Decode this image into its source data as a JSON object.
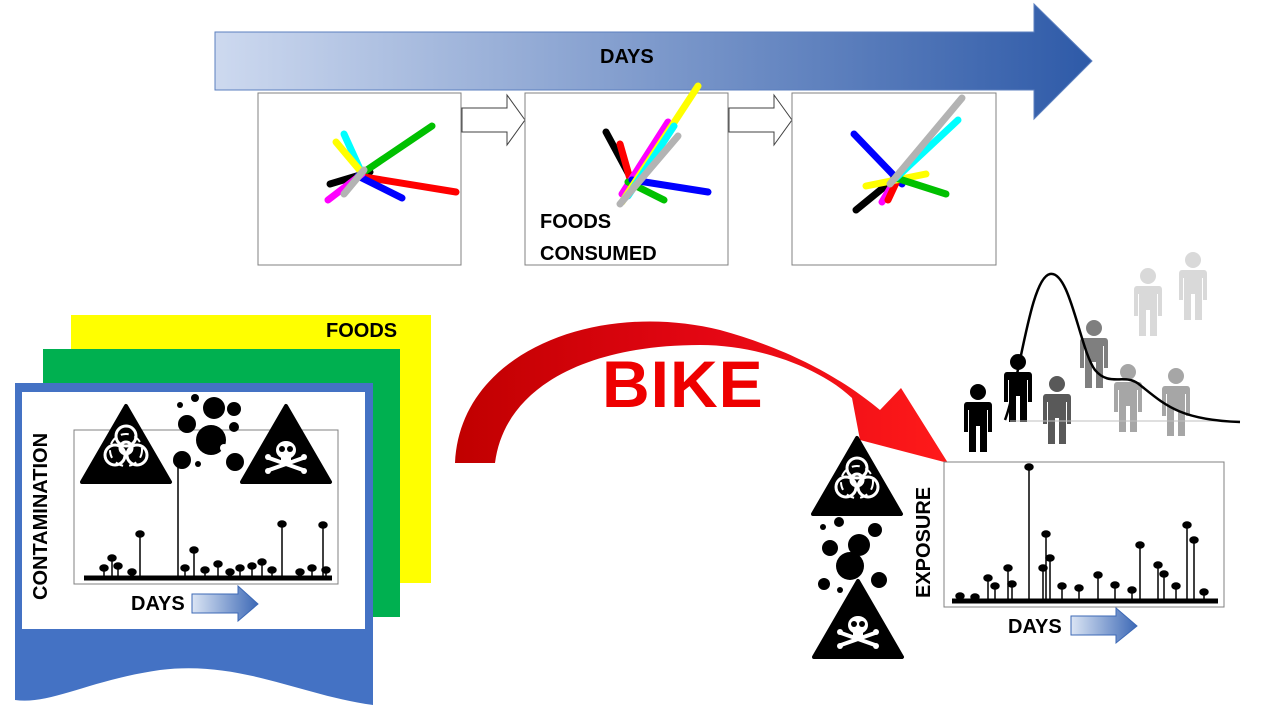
{
  "labels": {
    "days_timeline": "DAYS",
    "foods_consumed_line1": "FOODS",
    "foods_consumed_line2": "CONSUMED",
    "foods": "FOODS",
    "bike": "BIKE",
    "contamination": "CONTAMINATION",
    "days_contamination": "DAYS",
    "exposure": "EXPOSURE",
    "days_exposure": "DAYS"
  },
  "colors": {
    "bike_arrow": "#e30613",
    "timeline_start": "#cdd9ef",
    "timeline_end": "#2e5aa8",
    "sheet_blue": "#4472c4",
    "sheet_green": "#00b050",
    "sheet_yellow": "#ffff00",
    "stick_black": "#000000",
    "stick_cyan": "#00ffff",
    "stick_green": "#00c000",
    "stick_red": "#ff0000",
    "stick_blue": "#0000ff",
    "stick_magenta": "#ff00ff",
    "stick_yellow": "#ffff00",
    "stick_gray": "#b3b3b3"
  },
  "icons": [
    "biohazard-icon",
    "skull-crossbones-icon",
    "bubbles-icon",
    "person-icon",
    "distribution-curve-icon"
  ]
}
